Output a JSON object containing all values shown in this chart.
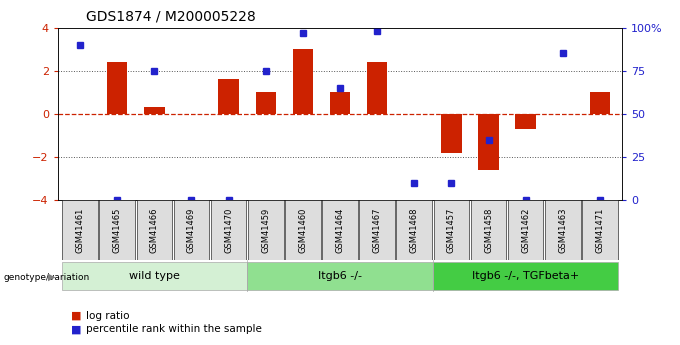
{
  "title": "GDS1874 / M200005228",
  "samples": [
    "GSM41461",
    "GSM41465",
    "GSM41466",
    "GSM41469",
    "GSM41470",
    "GSM41459",
    "GSM41460",
    "GSM41464",
    "GSM41467",
    "GSM41468",
    "GSM41457",
    "GSM41458",
    "GSM41462",
    "GSM41463",
    "GSM41471"
  ],
  "log_ratio": [
    0.0,
    2.4,
    0.3,
    0.0,
    1.6,
    1.0,
    3.0,
    1.0,
    2.4,
    0.0,
    -1.8,
    -2.6,
    -0.7,
    0.0,
    1.0
  ],
  "percentile_rank": [
    90,
    0,
    75,
    0,
    0,
    75,
    97,
    65,
    98,
    10,
    10,
    35,
    0,
    85,
    0
  ],
  "groups": [
    {
      "label": "wild type",
      "start": 0,
      "end": 5,
      "color": "#d4f0d4"
    },
    {
      "label": "Itgb6 -/-",
      "start": 5,
      "end": 10,
      "color": "#90e090"
    },
    {
      "label": "Itgb6 -/-, TGFbeta+",
      "start": 10,
      "end": 15,
      "color": "#44cc44"
    }
  ],
  "ylim": [
    -4,
    4
  ],
  "yticks_left": [
    -4,
    -2,
    0,
    2,
    4
  ],
  "yticks_right": [
    0,
    25,
    50,
    75,
    100
  ],
  "bar_color": "#cc2200",
  "dot_color": "#2222cc",
  "hline_color": "#cc2200",
  "dotted_color": "#555555",
  "background_color": "#ffffff",
  "label_bg_color": "#dddddd"
}
